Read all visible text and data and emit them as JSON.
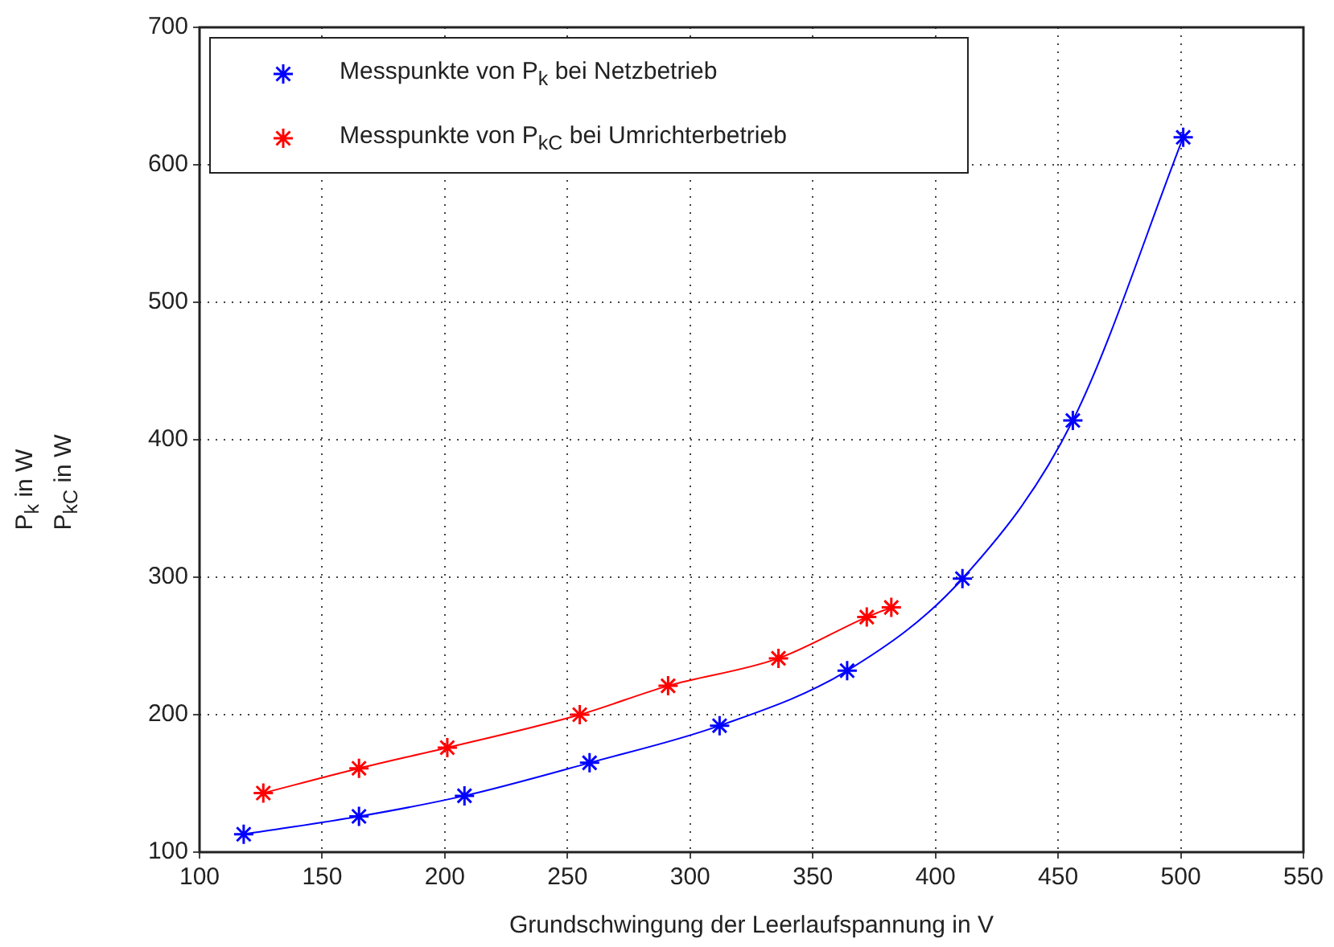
{
  "chart_data": {
    "type": "line",
    "xlabel": "Grundschwingung der Leerlaufspannung in V",
    "ylabel": "P$_{k}$ in W\nP$_{kC}$ in W",
    "xlim": [
      100,
      550
    ],
    "xticks": [
      100,
      150,
      200,
      250,
      300,
      350,
      400,
      450,
      500,
      550
    ],
    "ylim": [
      100,
      700
    ],
    "yticks": [
      100,
      200,
      300,
      400,
      500,
      600,
      700
    ],
    "grid": true,
    "legend": "top left",
    "marker": "cross",
    "line_style": "solid",
    "series": [
      {
        "name": "Messpunkte von P$_{k}$ bei Netzbetrieb",
        "color": "#0000ff",
        "x": [
          118,
          165,
          208,
          259,
          312,
          364,
          411,
          456,
          501
        ],
        "values": [
          113,
          126,
          141,
          165,
          192,
          232,
          299,
          414,
          620
        ]
      },
      {
        "name": "Messpunkte von P$_{kC}$ bei Umrichterbetrieb",
        "color": "#ff0000",
        "x": [
          126,
          165,
          201,
          255,
          291,
          336,
          372,
          382
        ],
        "values": [
          143,
          161,
          176,
          200,
          221,
          241,
          271,
          278
        ]
      }
    ]
  }
}
